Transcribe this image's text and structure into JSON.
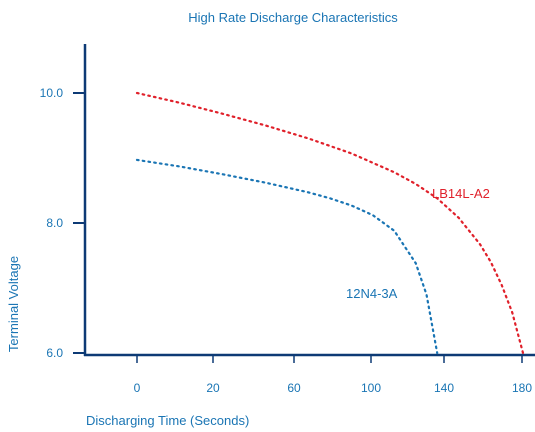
{
  "chart_data": {
    "type": "line",
    "title": "High Rate Discharge Characteristics",
    "xlabel": "Discharging Time (Seconds)",
    "ylabel": "Terminal Voltage",
    "x_tick_labels": [
      "0",
      "20",
      "60",
      "100",
      "140",
      "180"
    ],
    "y_ticks": [
      6.0,
      8.0,
      10.0
    ],
    "y_tick_labels": [
      "6.0",
      "8.0",
      "10.0"
    ],
    "ylim": [
      6.0,
      10.6
    ],
    "grid": false,
    "series": [
      {
        "name": "LB14L-A2",
        "color": "#e0212b",
        "style": "dotted",
        "x": [
          0,
          20,
          40,
          60,
          80,
          100,
          120,
          130,
          140,
          150,
          160,
          165,
          170,
          175,
          180
        ],
        "y": [
          10.0,
          9.85,
          9.68,
          9.5,
          9.3,
          9.07,
          8.78,
          8.6,
          8.38,
          8.08,
          7.67,
          7.4,
          7.05,
          6.62,
          6.0
        ]
      },
      {
        "name": "12N4-3A",
        "color": "#1a75b4",
        "style": "dotted",
        "x": [
          0,
          20,
          40,
          60,
          80,
          90,
          100,
          110,
          120,
          130,
          135,
          140
        ],
        "y": [
          8.97,
          8.87,
          8.75,
          8.62,
          8.47,
          8.38,
          8.27,
          8.12,
          7.88,
          7.38,
          6.9,
          6.0
        ]
      }
    ]
  },
  "colors": {
    "text": "#1a75b4",
    "axis": "#0d3a75"
  }
}
